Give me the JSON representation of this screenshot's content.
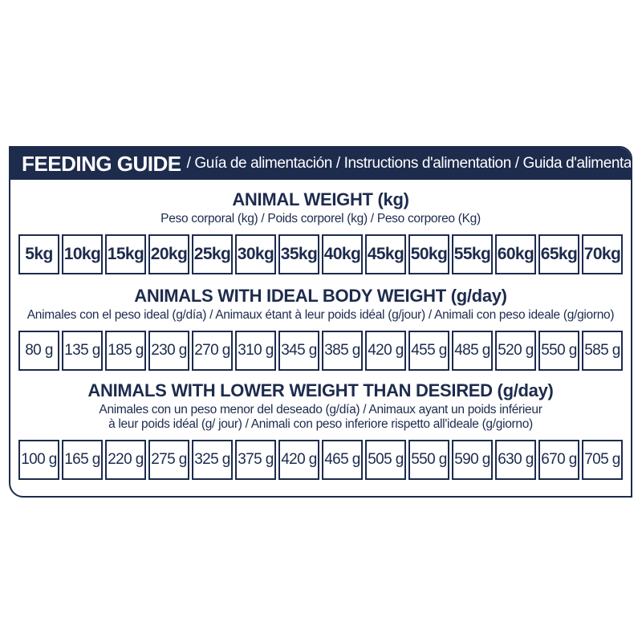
{
  "colors": {
    "navy": "#1d2b4d",
    "white": "#ffffff"
  },
  "panel": {
    "header": {
      "title": "FEEDING GUIDE",
      "subtitle": "/ Guía de alimentación / Instructions d'alimentation / Guida d'alimentazione"
    },
    "sections": [
      {
        "heading": "ANIMAL WEIGHT (kg)",
        "subtitle": "Peso corporal (kg) / Poids corporel (kg) / Peso corporeo (Kg)",
        "cells": [
          "5kg",
          "10kg",
          "15kg",
          "20kg",
          "25kg",
          "30kg",
          "35kg",
          "40kg",
          "45kg",
          "50kg",
          "55kg",
          "60kg",
          "65kg",
          "70kg"
        ]
      },
      {
        "heading": "ANIMALS WITH IDEAL BODY WEIGHT (g/day)",
        "subtitle": "Animales con el peso ideal (g/día) / Animaux étant à leur poids idéal (g/jour) / Animali con peso ideale (g/giorno)",
        "cells": [
          "80 g",
          "135 g",
          "185 g",
          "230 g",
          "270 g",
          "310 g",
          "345 g",
          "385 g",
          "420 g",
          "455 g",
          "485 g",
          "520 g",
          "550 g",
          "585 g"
        ]
      },
      {
        "heading": "ANIMALS WITH LOWER WEIGHT THAN DESIRED (g/day)",
        "subtitle": "Animales con un peso menor del deseado (g/día) / Animaux ayant un poids inférieur",
        "subtitle2": "à leur poids idéal (g/ jour) / Animali con peso inferiore rispetto all'ideale (g/giorno)",
        "cells": [
          "100 g",
          "165 g",
          "220 g",
          "275 g",
          "325 g",
          "375 g",
          "420 g",
          "465 g",
          "505 g",
          "550 g",
          "590 g",
          "630 g",
          "670 g",
          "705 g"
        ]
      }
    ]
  }
}
